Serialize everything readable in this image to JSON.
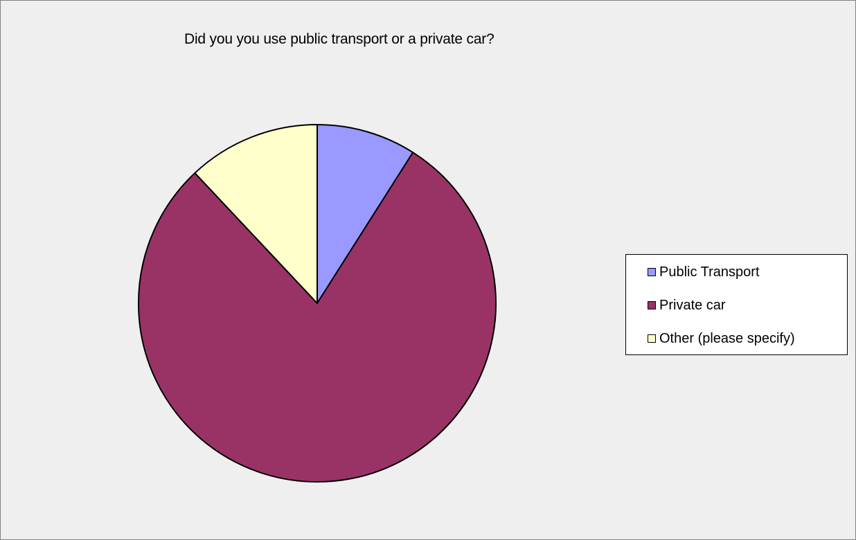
{
  "chart_data": {
    "type": "pie",
    "title": "Did you you use public transport or a private car?",
    "categories": [
      "Public Transport",
      "Private car",
      "Other (please specify)"
    ],
    "values": [
      9,
      79,
      12
    ],
    "unit": "percent of responses",
    "colors": [
      "#9999ff",
      "#993366",
      "#ffffcc"
    ],
    "start_angle": "12 o'clock",
    "direction": "clockwise",
    "legend": {
      "position": "right",
      "items": [
        {
          "label": "Public Transport",
          "color": "#9999ff"
        },
        {
          "label": "Private car",
          "color": "#993366"
        },
        {
          "label": "Other (please specify)",
          "color": "#ffffcc"
        }
      ]
    },
    "background_color": "#efefef",
    "outline_color": "#000000"
  }
}
